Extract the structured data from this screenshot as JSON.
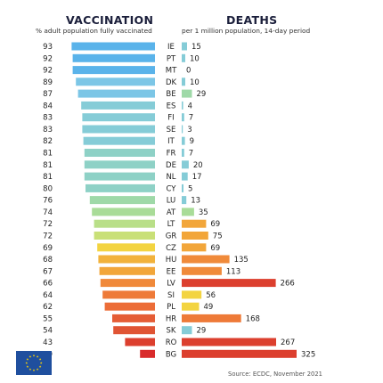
{
  "header": {
    "vaccination_title": "VACCINATION",
    "vaccination_subtitle": "% adult population fully vaccinated",
    "deaths_title": "DEATHS",
    "deaths_subtitle": "per 1 million population, 14-day period"
  },
  "source": "Source: ECDC, November 2021",
  "logo": {
    "icon": "eu-flag-icon",
    "colors": {
      "field": "#1f4f9e",
      "stars": "#ffd400"
    }
  },
  "chart_data": {
    "type": "bar",
    "categories": [
      "IE",
      "PT",
      "MT",
      "DK",
      "BE",
      "ES",
      "FI",
      "SE",
      "IT",
      "FR",
      "DE",
      "NL",
      "CY",
      "LU",
      "AT",
      "LT",
      "GR",
      "CZ",
      "HU",
      "EE",
      "LV",
      "SI",
      "PL",
      "HR",
      "SK",
      "RO",
      "BG"
    ],
    "series": [
      {
        "values": [
          93,
          92,
          92,
          89,
          87,
          84,
          83,
          83,
          82,
          81,
          81,
          81,
          80,
          76,
          74,
          72,
          72,
          69,
          68,
          67,
          66,
          64,
          62,
          55,
          54,
          43,
          29
        ]
      },
      {
        "values": [
          15,
          10,
          0,
          10,
          29,
          4,
          7,
          3,
          9,
          7,
          20,
          17,
          5,
          13,
          35,
          69,
          75,
          69,
          135,
          113,
          266,
          56,
          49,
          168,
          29,
          267,
          325
        ]
      }
    ],
    "vaccination_colors": [
      "#5ab3ea",
      "#5ab3ea",
      "#5ab3ea",
      "#7cc6e6",
      "#7cc6e6",
      "#85ccd7",
      "#85ccd7",
      "#85ccd7",
      "#85ccd7",
      "#8ed1c6",
      "#8ed1c6",
      "#8ed1c6",
      "#8ed1c6",
      "#9fd9a8",
      "#a9dc98",
      "#b9df88",
      "#c9e077",
      "#f3d441",
      "#f2b23b",
      "#f2a63a",
      "#f0893a",
      "#ee7a38",
      "#ec6d38",
      "#e55d36",
      "#e05434",
      "#dc3f2e",
      "#d92b2b"
    ],
    "death_colors": [
      "#85ccd7",
      "#85ccd7",
      "#85ccd7",
      "#85ccd7",
      "#9fd9a8",
      "#85ccd7",
      "#85ccd7",
      "#85ccd7",
      "#85ccd7",
      "#85ccd7",
      "#85ccd7",
      "#85ccd7",
      "#85ccd7",
      "#85ccd7",
      "#a9dc98",
      "#f2a63a",
      "#f2a63a",
      "#f2a63a",
      "#f08a3a",
      "#f08a3a",
      "#dc3f2e",
      "#f3d441",
      "#f3d441",
      "#ee7a38",
      "#85ccd7",
      "#dc3f2e",
      "#dc3f2e"
    ]
  }
}
